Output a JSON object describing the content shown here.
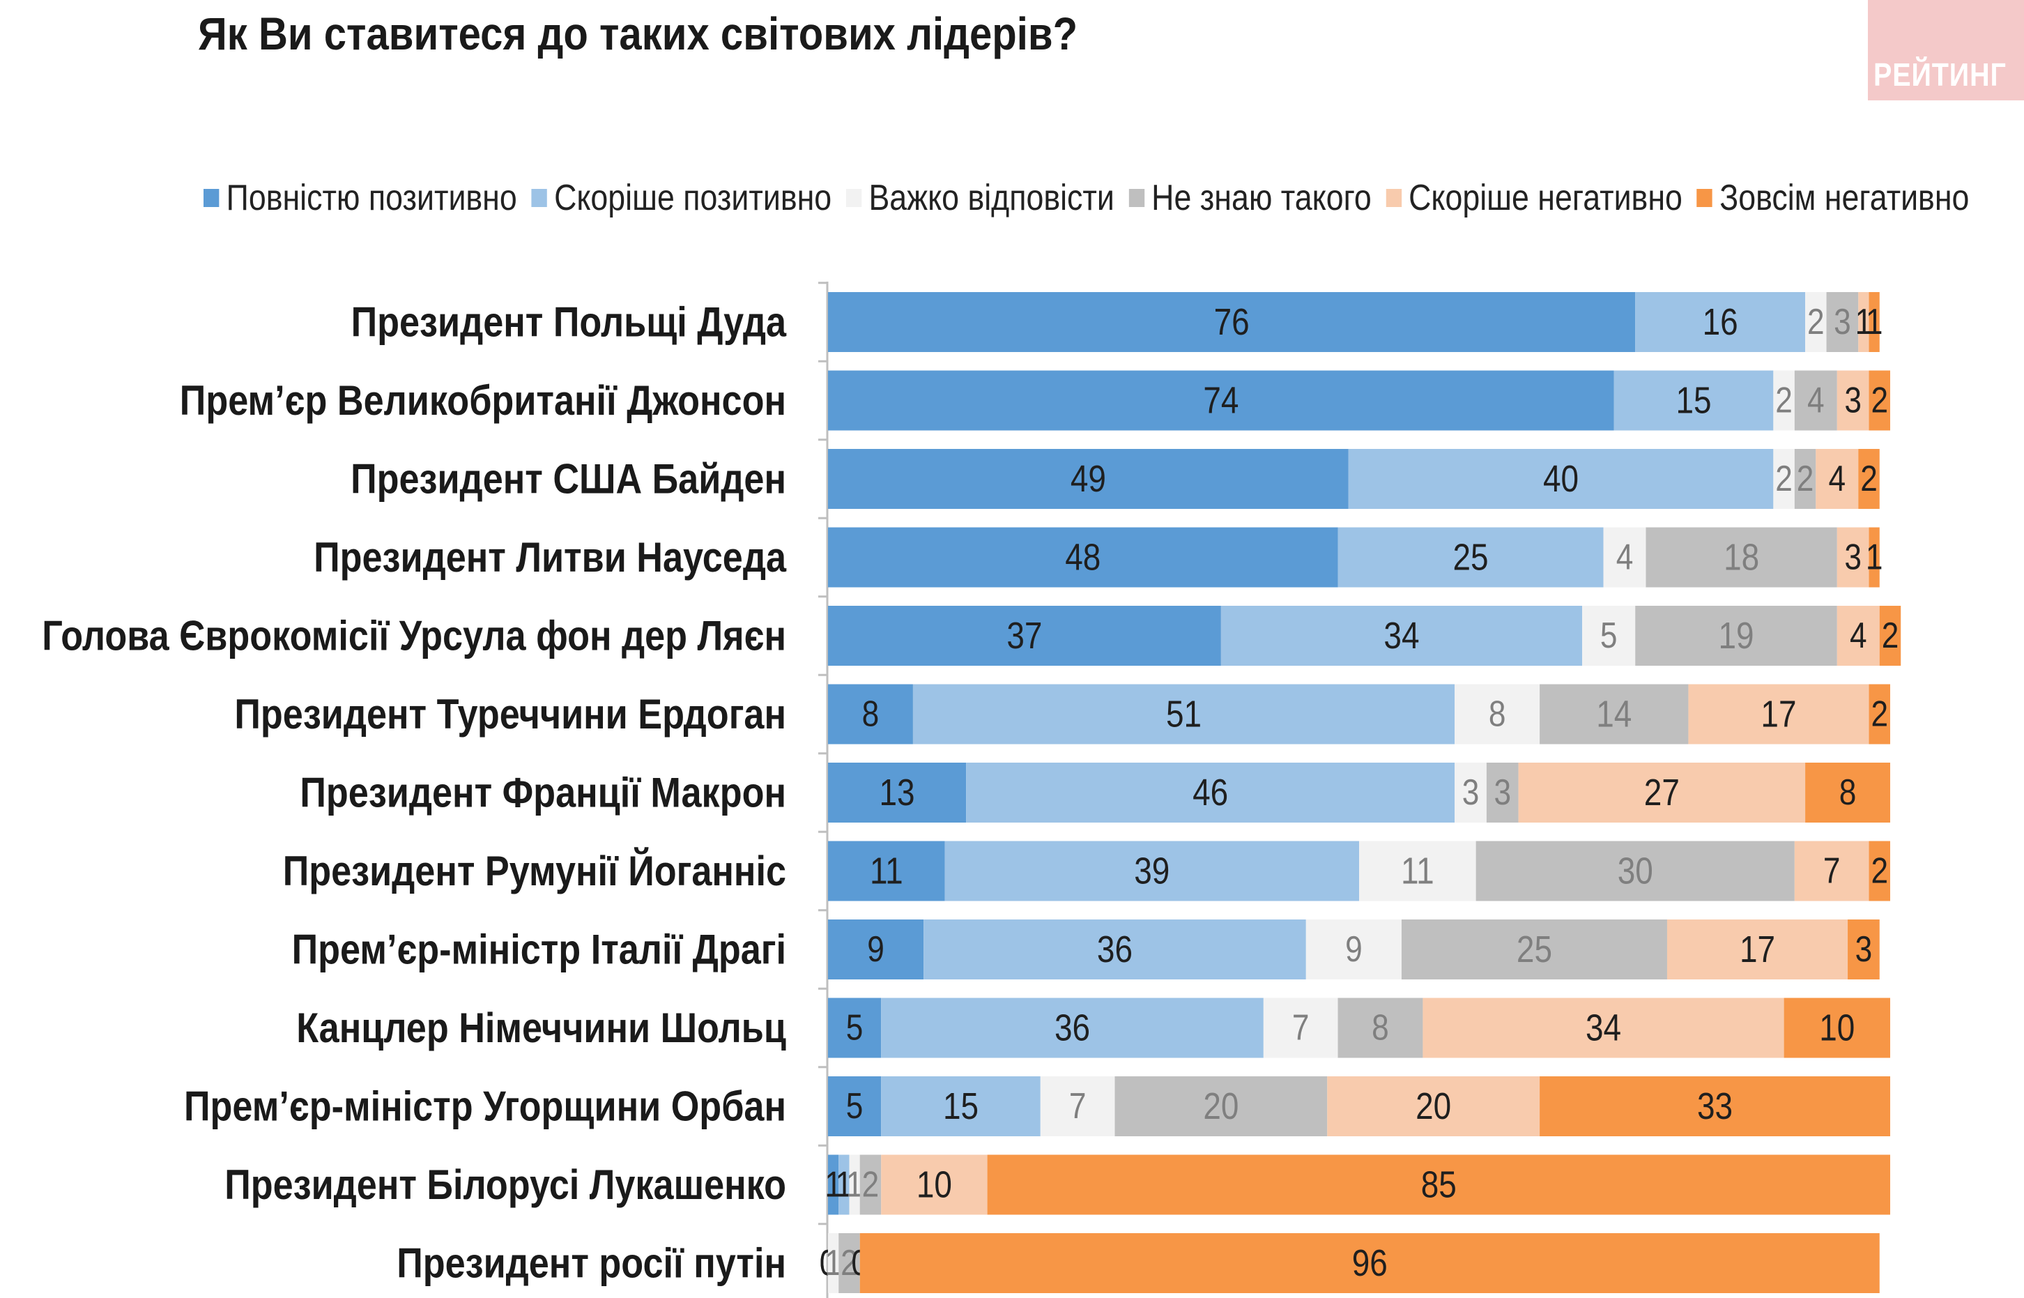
{
  "title": "Як Ви ставитеся до таких світових лідерів?",
  "logo_text": "РЕЙТИНГ",
  "chart_data": {
    "type": "bar",
    "orientation": "horizontal",
    "stacked": true,
    "title": "Як Ви ставитеся до таких світових лідерів?",
    "xlim": [
      0,
      100
    ],
    "grid": false,
    "legend_position": "top",
    "categories": [
      "Президент Польщі Дуда",
      "Прем’єр Великобританії Джонсон",
      "Президент США Байден",
      "Президент Литви Науседа",
      "Голова Єврокомісії Урсула фон дер Ляєн",
      "Президент Туреччини Ердоган",
      "Президент Франції Макрон",
      "Президент Румунії Йоганніс",
      "Прем’єр-міністр Італії Драгі",
      "Канцлер Німеччини Шольц",
      "Прем’єр-міністр Угорщини Орбан",
      "Президент Білорусі Лукашенко",
      "Президент росії путін"
    ],
    "series": [
      {
        "name": "Повністю позитивно",
        "color": "#5b9bd5",
        "label_color": "#1f1f1f",
        "values": [
          76,
          74,
          49,
          48,
          37,
          8,
          13,
          11,
          9,
          5,
          5,
          1,
          0
        ]
      },
      {
        "name": "Скоріше позитивно",
        "color": "#9dc3e6",
        "label_color": "#1f1f1f",
        "values": [
          16,
          15,
          40,
          25,
          34,
          51,
          46,
          39,
          36,
          36,
          15,
          1,
          0
        ]
      },
      {
        "name": "Важко відповісти",
        "color": "#f2f2f2",
        "label_color": "#7f7f7f",
        "values": [
          2,
          2,
          2,
          4,
          5,
          8,
          3,
          11,
          9,
          7,
          7,
          1,
          1
        ]
      },
      {
        "name": "Не знаю такого",
        "color": "#bfbfbf",
        "label_color": "#7f7f7f",
        "values": [
          3,
          4,
          2,
          18,
          19,
          14,
          3,
          30,
          25,
          8,
          20,
          2,
          2
        ]
      },
      {
        "name": "Скоріше негативно",
        "color": "#f8cbad",
        "label_color": "#1f1f1f",
        "values": [
          1,
          3,
          4,
          3,
          4,
          17,
          27,
          7,
          17,
          34,
          20,
          10,
          0
        ]
      },
      {
        "name": "Зовсім негативно",
        "color": "#f79646",
        "label_color": "#1f1f1f",
        "values": [
          1,
          2,
          2,
          1,
          2,
          2,
          8,
          2,
          3,
          10,
          33,
          85,
          96
        ]
      }
    ]
  }
}
